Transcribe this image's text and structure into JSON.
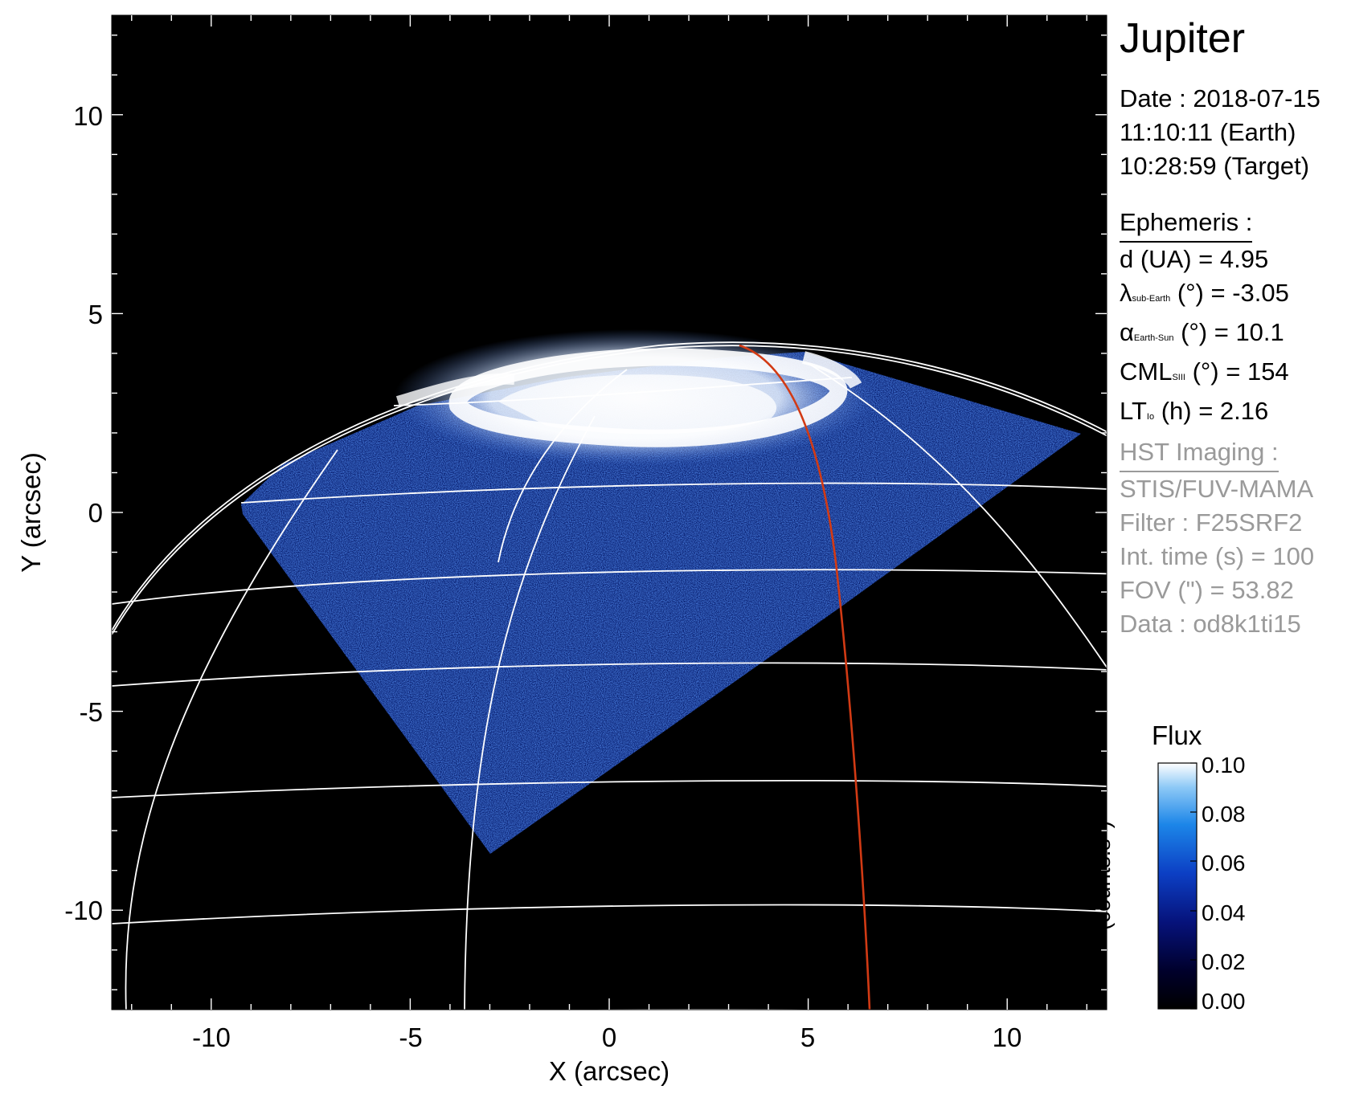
{
  "chart_data": {
    "type": "heatmap",
    "xlabel": "X (arcsec)",
    "ylabel": "Y (arcsec)",
    "xlim": [
      -12.5,
      12.5
    ],
    "ylim": [
      -12.5,
      12.5
    ],
    "xticks": [
      -10,
      -5,
      0,
      5,
      10
    ],
    "yticks": [
      10,
      5,
      0,
      -5,
      -10
    ],
    "colorbar": {
      "title": "Flux",
      "unit": "(counts.s",
      "unit_sup": "-1",
      "unit_close": ")",
      "ticks": [
        "0.10",
        "0.08",
        "0.06",
        "0.04",
        "0.02",
        "0.00"
      ],
      "range": [
        0.0,
        0.1
      ]
    },
    "colors": {
      "background": "#000000",
      "grid": "#ffffff",
      "track": "#d23a14",
      "low": "#000010",
      "mid": "#0c3fb4",
      "high": "#ffffff"
    }
  },
  "panel": {
    "title": "Jupiter",
    "date_line": "Date : 2018-07-15",
    "earth_line": "11:10:11 (Earth)",
    "target_line": "10:28:59 (Target)",
    "ephemeris_header": "Ephemeris :",
    "d_text": "d (UA)    = 4.95",
    "lat_sym": "λ",
    "lat_sub": "sub-Earth",
    "lat_rest": " (°) = -3.05",
    "phase_sym": "α",
    "phase_sub": "Earth-Sun",
    "phase_rest": " (°) = 10.1",
    "cml_sym": "CML",
    "cml_sub": "SIII",
    "cml_rest": " (°) = 154",
    "lt_sym": "LT",
    "lt_sub": "Io",
    "lt_rest": " (h) = 2.16",
    "hst_header": "HST Imaging :",
    "instrument": "STIS/FUV-MAMA",
    "filter": "Filter : F25SRF2",
    "int_time": "Int. time (s) = 100",
    "fov": "FOV (\") = 53.82",
    "data_id": "Data : od8k1ti15"
  }
}
